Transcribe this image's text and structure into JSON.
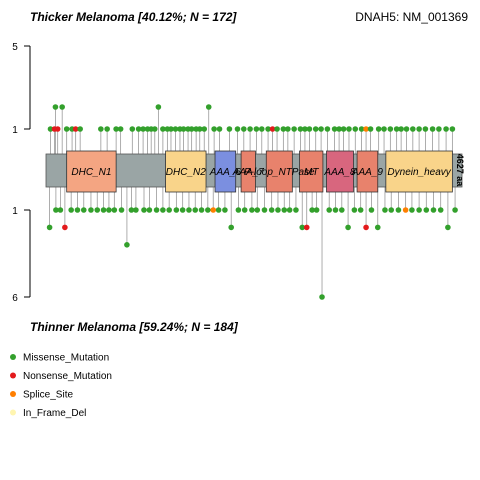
{
  "chart_data": {
    "type": "lollipop",
    "gene_label": "DNAH5: NM_001369",
    "protein_length_label": "4627 aa",
    "protein_length": 4627,
    "top": {
      "title": "Thicker Melanoma [40.12%; N = 172]",
      "ylim": [
        0,
        5
      ],
      "ticks": [
        5,
        1
      ]
    },
    "bottom": {
      "title": "Thinner Melanoma [59.24%; N = 184]",
      "ylim": [
        0,
        6
      ],
      "ticks": [
        1,
        6
      ]
    },
    "domains": [
      {
        "name": "DHC_N1",
        "start": 230,
        "end": 780,
        "color": "#F4A582"
      },
      {
        "name": "DHC_N2",
        "start": 1330,
        "end": 1780,
        "color": "#F9D48A"
      },
      {
        "name": "AAA_6",
        "start": 1880,
        "end": 2110,
        "color": "#7B8FE0"
      },
      {
        "name": "AAA_7",
        "start": 2170,
        "end": 2330,
        "color": "#E8826C"
      },
      {
        "name": "P-loop_NTPase",
        "start": 2450,
        "end": 2740,
        "color": "#E8826C"
      },
      {
        "name": "MT",
        "start": 2820,
        "end": 3080,
        "color": "#E8826C"
      },
      {
        "name": "AAA_8",
        "start": 3120,
        "end": 3420,
        "color": "#D8667E"
      },
      {
        "name": "AAA_9",
        "start": 3460,
        "end": 3690,
        "color": "#E8826C"
      },
      {
        "name": "Dynein_heavy",
        "start": 3780,
        "end": 4520,
        "color": "#F9D48A"
      }
    ],
    "legend": [
      {
        "label": "Missense_Mutation",
        "color": "#33A02C"
      },
      {
        "label": "Nonsense_Mutation",
        "color": "#E31A1C"
      },
      {
        "label": "Splice_Site",
        "color": "#FF7F00"
      },
      {
        "label": "In_Frame_Del",
        "color": "#FFF5B0"
      }
    ],
    "top_mutations": [
      {
        "pos": 50,
        "count": 1,
        "type": "Missense_Mutation"
      },
      {
        "pos": 95,
        "count": 1,
        "type": "Nonsense_Mutation"
      },
      {
        "pos": 105,
        "count": 2,
        "type": "Missense_Mutation"
      },
      {
        "pos": 130,
        "count": 1,
        "type": "Nonsense_Mutation"
      },
      {
        "pos": 180,
        "count": 2,
        "type": "Missense_Mutation"
      },
      {
        "pos": 230,
        "count": 1,
        "type": "Missense_Mutation"
      },
      {
        "pos": 290,
        "count": 1,
        "type": "Missense_Mutation"
      },
      {
        "pos": 330,
        "count": 1,
        "type": "Nonsense_Mutation"
      },
      {
        "pos": 380,
        "count": 1,
        "type": "Missense_Mutation"
      },
      {
        "pos": 610,
        "count": 1,
        "type": "Missense_Mutation"
      },
      {
        "pos": 680,
        "count": 1,
        "type": "Missense_Mutation"
      },
      {
        "pos": 780,
        "count": 1,
        "type": "Missense_Mutation"
      },
      {
        "pos": 830,
        "count": 1,
        "type": "Missense_Mutation"
      },
      {
        "pos": 960,
        "count": 1,
        "type": "Missense_Mutation"
      },
      {
        "pos": 1030,
        "count": 1,
        "type": "Missense_Mutation"
      },
      {
        "pos": 1080,
        "count": 1,
        "type": "Missense_Mutation"
      },
      {
        "pos": 1130,
        "count": 1,
        "type": "Missense_Mutation"
      },
      {
        "pos": 1170,
        "count": 1,
        "type": "Missense_Mutation"
      },
      {
        "pos": 1210,
        "count": 1,
        "type": "Missense_Mutation"
      },
      {
        "pos": 1250,
        "count": 2,
        "type": "Missense_Mutation"
      },
      {
        "pos": 1300,
        "count": 1,
        "type": "Missense_Mutation"
      },
      {
        "pos": 1350,
        "count": 1,
        "type": "Missense_Mutation"
      },
      {
        "pos": 1390,
        "count": 1,
        "type": "Missense_Mutation"
      },
      {
        "pos": 1440,
        "count": 1,
        "type": "Missense_Mutation"
      },
      {
        "pos": 1490,
        "count": 1,
        "type": "Missense_Mutation"
      },
      {
        "pos": 1530,
        "count": 1,
        "type": "Missense_Mutation"
      },
      {
        "pos": 1580,
        "count": 1,
        "type": "Missense_Mutation"
      },
      {
        "pos": 1620,
        "count": 1,
        "type": "Missense_Mutation"
      },
      {
        "pos": 1670,
        "count": 1,
        "type": "Missense_Mutation"
      },
      {
        "pos": 1710,
        "count": 1,
        "type": "Missense_Mutation"
      },
      {
        "pos": 1760,
        "count": 1,
        "type": "Missense_Mutation"
      },
      {
        "pos": 1810,
        "count": 2,
        "type": "Missense_Mutation"
      },
      {
        "pos": 1870,
        "count": 1,
        "type": "Missense_Mutation"
      },
      {
        "pos": 1930,
        "count": 1,
        "type": "Missense_Mutation"
      },
      {
        "pos": 2040,
        "count": 1,
        "type": "Missense_Mutation"
      },
      {
        "pos": 2130,
        "count": 1,
        "type": "Missense_Mutation"
      },
      {
        "pos": 2200,
        "count": 1,
        "type": "Missense_Mutation"
      },
      {
        "pos": 2270,
        "count": 1,
        "type": "Missense_Mutation"
      },
      {
        "pos": 2340,
        "count": 1,
        "type": "Missense_Mutation"
      },
      {
        "pos": 2400,
        "count": 1,
        "type": "Missense_Mutation"
      },
      {
        "pos": 2470,
        "count": 1,
        "type": "Missense_Mutation"
      },
      {
        "pos": 2520,
        "count": 1,
        "type": "Nonsense_Mutation"
      },
      {
        "pos": 2570,
        "count": 1,
        "type": "Missense_Mutation"
      },
      {
        "pos": 2640,
        "count": 1,
        "type": "Missense_Mutation"
      },
      {
        "pos": 2690,
        "count": 1,
        "type": "Missense_Mutation"
      },
      {
        "pos": 2760,
        "count": 1,
        "type": "Missense_Mutation"
      },
      {
        "pos": 2830,
        "count": 1,
        "type": "Missense_Mutation"
      },
      {
        "pos": 2880,
        "count": 1,
        "type": "Missense_Mutation"
      },
      {
        "pos": 2930,
        "count": 1,
        "type": "Missense_Mutation"
      },
      {
        "pos": 3000,
        "count": 1,
        "type": "Missense_Mutation"
      },
      {
        "pos": 3060,
        "count": 1,
        "type": "Missense_Mutation"
      },
      {
        "pos": 3130,
        "count": 1,
        "type": "Missense_Mutation"
      },
      {
        "pos": 3210,
        "count": 1,
        "type": "Missense_Mutation"
      },
      {
        "pos": 3260,
        "count": 1,
        "type": "Missense_Mutation"
      },
      {
        "pos": 3310,
        "count": 1,
        "type": "Missense_Mutation"
      },
      {
        "pos": 3370,
        "count": 1,
        "type": "Missense_Mutation"
      },
      {
        "pos": 3440,
        "count": 1,
        "type": "Missense_Mutation"
      },
      {
        "pos": 3510,
        "count": 1,
        "type": "Missense_Mutation"
      },
      {
        "pos": 3560,
        "count": 1,
        "type": "Splice_Site"
      },
      {
        "pos": 3610,
        "count": 1,
        "type": "Missense_Mutation"
      },
      {
        "pos": 3700,
        "count": 1,
        "type": "Missense_Mutation"
      },
      {
        "pos": 3760,
        "count": 1,
        "type": "Missense_Mutation"
      },
      {
        "pos": 3830,
        "count": 1,
        "type": "Missense_Mutation"
      },
      {
        "pos": 3900,
        "count": 1,
        "type": "Missense_Mutation"
      },
      {
        "pos": 3950,
        "count": 1,
        "type": "Missense_Mutation"
      },
      {
        "pos": 4010,
        "count": 1,
        "type": "Missense_Mutation"
      },
      {
        "pos": 4080,
        "count": 1,
        "type": "Missense_Mutation"
      },
      {
        "pos": 4150,
        "count": 1,
        "type": "Missense_Mutation"
      },
      {
        "pos": 4220,
        "count": 1,
        "type": "Missense_Mutation"
      },
      {
        "pos": 4300,
        "count": 1,
        "type": "Missense_Mutation"
      },
      {
        "pos": 4370,
        "count": 1,
        "type": "Missense_Mutation"
      },
      {
        "pos": 4450,
        "count": 1,
        "type": "Missense_Mutation"
      },
      {
        "pos": 4520,
        "count": 1,
        "type": "Missense_Mutation"
      }
    ],
    "bottom_mutations": [
      {
        "pos": 40,
        "count": 2,
        "type": "Missense_Mutation"
      },
      {
        "pos": 110,
        "count": 1,
        "type": "Missense_Mutation"
      },
      {
        "pos": 160,
        "count": 1,
        "type": "Missense_Mutation"
      },
      {
        "pos": 210,
        "count": 2,
        "type": "Nonsense_Mutation"
      },
      {
        "pos": 280,
        "count": 1,
        "type": "Missense_Mutation"
      },
      {
        "pos": 350,
        "count": 1,
        "type": "Missense_Mutation"
      },
      {
        "pos": 420,
        "count": 1,
        "type": "Missense_Mutation"
      },
      {
        "pos": 500,
        "count": 1,
        "type": "Missense_Mutation"
      },
      {
        "pos": 570,
        "count": 1,
        "type": "Missense_Mutation"
      },
      {
        "pos": 640,
        "count": 1,
        "type": "Missense_Mutation"
      },
      {
        "pos": 700,
        "count": 1,
        "type": "Missense_Mutation"
      },
      {
        "pos": 760,
        "count": 1,
        "type": "Missense_Mutation"
      },
      {
        "pos": 840,
        "count": 1,
        "type": "Missense_Mutation"
      },
      {
        "pos": 900,
        "count": 3,
        "type": "Missense_Mutation"
      },
      {
        "pos": 950,
        "count": 1,
        "type": "Missense_Mutation"
      },
      {
        "pos": 1000,
        "count": 1,
        "type": "Missense_Mutation"
      },
      {
        "pos": 1090,
        "count": 1,
        "type": "Missense_Mutation"
      },
      {
        "pos": 1150,
        "count": 1,
        "type": "Missense_Mutation"
      },
      {
        "pos": 1230,
        "count": 1,
        "type": "Missense_Mutation"
      },
      {
        "pos": 1300,
        "count": 1,
        "type": "Missense_Mutation"
      },
      {
        "pos": 1370,
        "count": 1,
        "type": "Missense_Mutation"
      },
      {
        "pos": 1450,
        "count": 1,
        "type": "Missense_Mutation"
      },
      {
        "pos": 1520,
        "count": 1,
        "type": "Missense_Mutation"
      },
      {
        "pos": 1590,
        "count": 1,
        "type": "Missense_Mutation"
      },
      {
        "pos": 1660,
        "count": 1,
        "type": "Missense_Mutation"
      },
      {
        "pos": 1730,
        "count": 1,
        "type": "Missense_Mutation"
      },
      {
        "pos": 1800,
        "count": 1,
        "type": "Missense_Mutation"
      },
      {
        "pos": 1860,
        "count": 1,
        "type": "Splice_Site"
      },
      {
        "pos": 1920,
        "count": 1,
        "type": "Missense_Mutation"
      },
      {
        "pos": 1990,
        "count": 1,
        "type": "Missense_Mutation"
      },
      {
        "pos": 2060,
        "count": 2,
        "type": "Missense_Mutation"
      },
      {
        "pos": 2140,
        "count": 1,
        "type": "Missense_Mutation"
      },
      {
        "pos": 2210,
        "count": 1,
        "type": "Missense_Mutation"
      },
      {
        "pos": 2290,
        "count": 1,
        "type": "Missense_Mutation"
      },
      {
        "pos": 2350,
        "count": 1,
        "type": "Missense_Mutation"
      },
      {
        "pos": 2430,
        "count": 1,
        "type": "Missense_Mutation"
      },
      {
        "pos": 2510,
        "count": 1,
        "type": "Missense_Mutation"
      },
      {
        "pos": 2580,
        "count": 1,
        "type": "Missense_Mutation"
      },
      {
        "pos": 2650,
        "count": 1,
        "type": "Missense_Mutation"
      },
      {
        "pos": 2710,
        "count": 1,
        "type": "Missense_Mutation"
      },
      {
        "pos": 2780,
        "count": 1,
        "type": "Missense_Mutation"
      },
      {
        "pos": 2850,
        "count": 2,
        "type": "Missense_Mutation"
      },
      {
        "pos": 2900,
        "count": 2,
        "type": "Nonsense_Mutation"
      },
      {
        "pos": 2960,
        "count": 1,
        "type": "Missense_Mutation"
      },
      {
        "pos": 3010,
        "count": 1,
        "type": "Missense_Mutation"
      },
      {
        "pos": 3070,
        "count": 6,
        "type": "Missense_Mutation"
      },
      {
        "pos": 3150,
        "count": 1,
        "type": "Missense_Mutation"
      },
      {
        "pos": 3220,
        "count": 1,
        "type": "Missense_Mutation"
      },
      {
        "pos": 3290,
        "count": 1,
        "type": "Missense_Mutation"
      },
      {
        "pos": 3360,
        "count": 2,
        "type": "Missense_Mutation"
      },
      {
        "pos": 3430,
        "count": 1,
        "type": "Missense_Mutation"
      },
      {
        "pos": 3500,
        "count": 1,
        "type": "Missense_Mutation"
      },
      {
        "pos": 3560,
        "count": 2,
        "type": "Nonsense_Mutation"
      },
      {
        "pos": 3620,
        "count": 1,
        "type": "Missense_Mutation"
      },
      {
        "pos": 3690,
        "count": 2,
        "type": "Missense_Mutation"
      },
      {
        "pos": 3770,
        "count": 1,
        "type": "Missense_Mutation"
      },
      {
        "pos": 3840,
        "count": 1,
        "type": "Missense_Mutation"
      },
      {
        "pos": 3920,
        "count": 1,
        "type": "Missense_Mutation"
      },
      {
        "pos": 4000,
        "count": 1,
        "type": "Splice_Site"
      },
      {
        "pos": 4070,
        "count": 1,
        "type": "Missense_Mutation"
      },
      {
        "pos": 4150,
        "count": 1,
        "type": "Missense_Mutation"
      },
      {
        "pos": 4230,
        "count": 1,
        "type": "Missense_Mutation"
      },
      {
        "pos": 4310,
        "count": 1,
        "type": "Missense_Mutation"
      },
      {
        "pos": 4390,
        "count": 1,
        "type": "Missense_Mutation"
      },
      {
        "pos": 4470,
        "count": 2,
        "type": "Missense_Mutation"
      },
      {
        "pos": 4550,
        "count": 1,
        "type": "Missense_Mutation"
      }
    ]
  }
}
